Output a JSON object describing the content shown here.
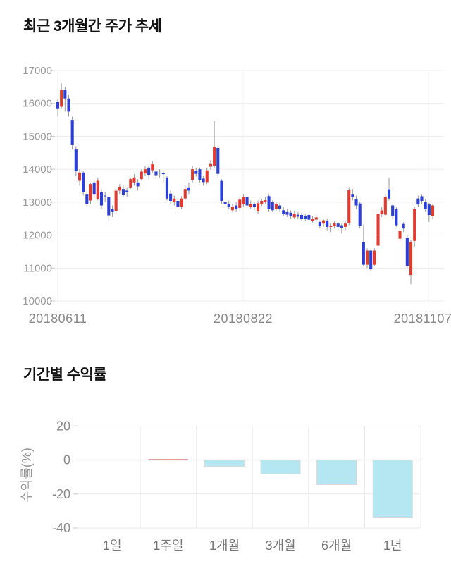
{
  "chart_data": [
    {
      "type": "candlestick",
      "title": "최근 3개월간 주가 추세",
      "ylim": [
        10000,
        17000
      ],
      "y_ticks": [
        17000,
        16000,
        15000,
        14000,
        13000,
        12000,
        11000,
        10000
      ],
      "x_labels": [
        "20180611",
        "20180822",
        "20181107"
      ],
      "grid": "horizontal",
      "colors": {
        "up": "#e23b2e",
        "down": "#2c3fd6",
        "wick": "#999999",
        "grid": "#ececec",
        "vgrid": "#f1f1f1",
        "tick_text": "#999999",
        "date_text": "#888888",
        "tick_mark": "#cccccc"
      },
      "candles_ohlc": [
        [
          16050,
          16120,
          15600,
          15850
        ],
        [
          15900,
          16610,
          15850,
          16400
        ],
        [
          16400,
          16500,
          15750,
          16150
        ],
        [
          16150,
          16250,
          15600,
          15750
        ],
        [
          15500,
          15600,
          14600,
          14750
        ],
        [
          14600,
          14700,
          13800,
          13950
        ],
        [
          13650,
          14000,
          13500,
          13900
        ],
        [
          13900,
          13950,
          13200,
          13300
        ],
        [
          13250,
          13350,
          12850,
          12950
        ],
        [
          13050,
          13600,
          12950,
          13550
        ],
        [
          13600,
          13700,
          13150,
          13250
        ],
        [
          13100,
          13750,
          13050,
          13650
        ],
        [
          13300,
          13400,
          12800,
          12900
        ],
        [
          13200,
          13300,
          13000,
          13180
        ],
        [
          13150,
          13200,
          12430,
          12600
        ],
        [
          12800,
          12900,
          12550,
          12700
        ],
        [
          12720,
          13400,
          12650,
          13350
        ],
        [
          13350,
          13550,
          13250,
          13470
        ],
        [
          13400,
          13500,
          13150,
          13220
        ],
        [
          13350,
          13450,
          13150,
          13300
        ],
        [
          13450,
          13750,
          13400,
          13700
        ],
        [
          13600,
          13850,
          13500,
          13750
        ],
        [
          13600,
          13700,
          13350,
          13480
        ],
        [
          13700,
          14000,
          13650,
          13930
        ],
        [
          13870,
          14100,
          13800,
          14000
        ],
        [
          14050,
          14100,
          13700,
          13830
        ],
        [
          13970,
          14250,
          13880,
          14150
        ],
        [
          13930,
          14050,
          13700,
          13820
        ],
        [
          13900,
          14000,
          13750,
          13890
        ],
        [
          13890,
          13980,
          13600,
          13850
        ],
        [
          13750,
          13800,
          13050,
          13110
        ],
        [
          13260,
          13350,
          12950,
          13040
        ],
        [
          13000,
          13200,
          12900,
          13110
        ],
        [
          13040,
          13100,
          12700,
          12860
        ],
        [
          12860,
          13180,
          12800,
          13110
        ],
        [
          13110,
          13500,
          13050,
          13400
        ],
        [
          13450,
          13600,
          13250,
          13350
        ],
        [
          13680,
          14100,
          13600,
          14000
        ],
        [
          13960,
          14050,
          13780,
          13860
        ],
        [
          14000,
          14050,
          13600,
          13680
        ],
        [
          13715,
          13800,
          13500,
          13610
        ],
        [
          13610,
          14050,
          13550,
          13965
        ],
        [
          14075,
          14280,
          13980,
          14180
        ],
        [
          14110,
          15465,
          14050,
          14680
        ],
        [
          14645,
          14700,
          13750,
          13860
        ],
        [
          13647,
          13700,
          12950,
          13040
        ],
        [
          13005,
          13100,
          12850,
          12933
        ],
        [
          12950,
          13050,
          12780,
          12850
        ],
        [
          12755,
          12950,
          12700,
          12862
        ],
        [
          12900,
          13000,
          12700,
          12800
        ],
        [
          12826,
          13150,
          12750,
          13076
        ],
        [
          12950,
          13250,
          12850,
          13150
        ],
        [
          13150,
          13200,
          12800,
          12900
        ],
        [
          12850,
          13050,
          12800,
          12950
        ],
        [
          12950,
          13000,
          12750,
          12850
        ],
        [
          12719,
          13050,
          12650,
          12969
        ],
        [
          12933,
          13100,
          12880,
          13040
        ],
        [
          13020,
          13150,
          12950,
          13060
        ],
        [
          13183,
          13250,
          12700,
          12790
        ],
        [
          13005,
          13050,
          12700,
          12755
        ],
        [
          12790,
          13000,
          12720,
          12933
        ],
        [
          12900,
          12980,
          12700,
          12780
        ],
        [
          12755,
          12850,
          12580,
          12647
        ],
        [
          12700,
          12780,
          12550,
          12620
        ],
        [
          12683,
          12750,
          12500,
          12576
        ],
        [
          12540,
          12720,
          12480,
          12647
        ],
        [
          12620,
          12700,
          12480,
          12560
        ],
        [
          12612,
          12680,
          12420,
          12504
        ],
        [
          12576,
          12650,
          12430,
          12504
        ],
        [
          12612,
          12650,
          12400,
          12469
        ],
        [
          12433,
          12580,
          12380,
          12504
        ],
        [
          12470,
          12620,
          12400,
          12540
        ],
        [
          12397,
          12450,
          12200,
          12290
        ],
        [
          12350,
          12500,
          12250,
          12450
        ],
        [
          12430,
          12500,
          12150,
          12250
        ],
        [
          12250,
          12350,
          12100,
          12270
        ],
        [
          12280,
          12420,
          12200,
          12360
        ],
        [
          12350,
          12400,
          12150,
          12250
        ],
        [
          12300,
          12350,
          12050,
          12220
        ],
        [
          12250,
          12450,
          12150,
          12350
        ],
        [
          12360,
          13460,
          12300,
          13360
        ],
        [
          13250,
          13400,
          13050,
          13150
        ],
        [
          13100,
          13200,
          12800,
          12900
        ],
        [
          12960,
          13000,
          12200,
          12290
        ],
        [
          11780,
          12320,
          11050,
          11100
        ],
        [
          11100,
          11600,
          11000,
          11530
        ],
        [
          11530,
          11580,
          10900,
          10960
        ],
        [
          11100,
          11600,
          11050,
          11530
        ],
        [
          11680,
          12700,
          11600,
          12650
        ],
        [
          12650,
          12850,
          12550,
          12750
        ],
        [
          12620,
          13250,
          12570,
          13150
        ],
        [
          13390,
          13740,
          13050,
          13110
        ],
        [
          12900,
          12950,
          12500,
          12580
        ],
        [
          12790,
          12850,
          12250,
          12300
        ],
        [
          11890,
          12250,
          11800,
          12130
        ],
        [
          12340,
          12400,
          12100,
          12200
        ],
        [
          11920,
          12000,
          11000,
          11070
        ],
        [
          10790,
          11850,
          10510,
          11780
        ],
        [
          11825,
          12850,
          11650,
          12790
        ],
        [
          13110,
          13200,
          12850,
          12930
        ],
        [
          13180,
          13250,
          12950,
          13040
        ],
        [
          13000,
          13080,
          12700,
          12790
        ],
        [
          12930,
          12980,
          12400,
          12610
        ],
        [
          12575,
          12950,
          12500,
          12900
        ]
      ]
    },
    {
      "type": "bar",
      "title": "기간별 수익률",
      "ylabel": "수익률(%)",
      "ylim": [
        -40,
        20
      ],
      "y_ticks": [
        20,
        0,
        -20,
        -40
      ],
      "categories": [
        "1일",
        "1주일",
        "1개월",
        "3개월",
        "6개월",
        "1년"
      ],
      "values": [
        0,
        0.4,
        -3.8,
        -8.2,
        -14.5,
        -34
      ],
      "grid": "both",
      "legend": "none",
      "colors": {
        "positive": "#e79090",
        "negative": "#b4e7f2",
        "bar_border": "#d9d9d9",
        "zero_line": "#c9c9c9",
        "grid": "#ebebeb",
        "tick_text": "#888888",
        "category_text": "#777777",
        "ylabel_text": "#999999",
        "tick_mark": "#cccccc"
      }
    }
  ]
}
